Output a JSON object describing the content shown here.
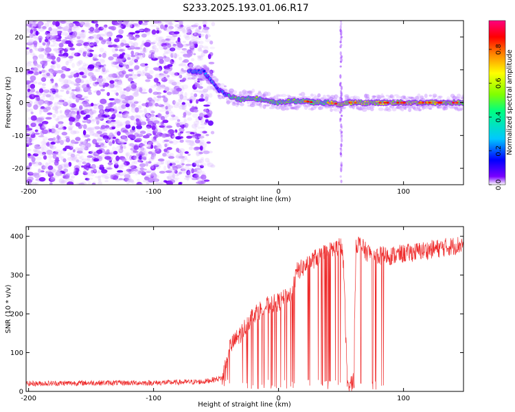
{
  "figure": {
    "title": "S233.2025.193.01.06.R17"
  },
  "chart_data": [
    {
      "type": "heatmap",
      "title": "S233.2025.193.01.06.R17",
      "xlabel": "Height of straight line (km)",
      "ylabel": "Frequency (Hz)",
      "xlim": [
        -202,
        148
      ],
      "ylim": [
        -25,
        25
      ],
      "x_ticks": [
        -200,
        -100,
        0,
        100
      ],
      "y_ticks": [
        -20,
        -10,
        0,
        10,
        20
      ],
      "x_tick_labels": [
        "-200",
        "-100",
        "0",
        "100"
      ],
      "y_tick_labels": [
        "-20",
        "-10",
        "0",
        "10",
        "20"
      ],
      "colorbar": {
        "label": "Normalized spectral amplitude",
        "range": [
          0,
          0.97
        ],
        "ticks": [
          0.0,
          0.2,
          0.4,
          0.6,
          0.8
        ],
        "tick_labels": [
          "0.0",
          "0.2",
          "0.4",
          "0.6",
          "0.8"
        ],
        "colormap": [
          "#ffffff",
          "#7a00ff",
          "#0000ff",
          "#00c8ff",
          "#00ff80",
          "#80ff00",
          "#ffff00",
          "#ff8000",
          "#ff0000",
          "#ff0080"
        ]
      },
      "features": {
        "noise_region_x": [
          -202,
          -52
        ],
        "signal_track": {
          "x": [
            -72,
            -60,
            -55,
            -48,
            -40,
            -30,
            -20,
            -10,
            0,
            10,
            20,
            30,
            40,
            50,
            55,
            60,
            70,
            80,
            90,
            100,
            110,
            120,
            130,
            140,
            148
          ],
          "y": [
            9.5,
            9.5,
            7,
            4,
            2,
            1,
            1.5,
            0.5,
            0,
            0.5,
            0.5,
            0,
            0,
            -0.5,
            0,
            0,
            0,
            0,
            0,
            0,
            0,
            0,
            0,
            0,
            0
          ]
        },
        "vertical_streak_x": 50
      },
      "grid": false
    },
    {
      "type": "line",
      "xlabel": "Height of straight line (km)",
      "ylabel": "SNR (10 * v/v)",
      "xlim": [
        -202,
        148
      ],
      "ylim": [
        0,
        425
      ],
      "x_ticks": [
        -200,
        -100,
        0,
        100
      ],
      "y_ticks": [
        0,
        100,
        200,
        300,
        400
      ],
      "x_tick_labels": [
        "-200",
        "-100",
        "0",
        "100"
      ],
      "y_tick_labels": [
        "0",
        "100",
        "200",
        "300",
        "400"
      ],
      "series": [
        {
          "color": "#ee2a2a",
          "trend": {
            "x": [
              -202,
              -150,
              -100,
              -60,
              -45,
              -40,
              -30,
              -20,
              -10,
              0,
              10,
              15,
              20,
              30,
              40,
              50,
              52,
              55,
              58,
              60,
              62,
              65,
              70,
              80,
              90,
              100,
              110,
              120,
              130,
              140,
              148
            ],
            "y": [
              20,
              22,
              22,
              25,
              35,
              110,
              150,
              200,
              220,
              230,
              250,
              310,
              320,
              345,
              360,
              375,
              330,
              20,
              20,
              30,
              380,
              380,
              360,
              350,
              350,
              355,
              360,
              365,
              370,
              375,
              380
            ]
          },
          "dropout_region_x": [
            -45,
            85
          ]
        }
      ],
      "grid": false
    }
  ]
}
